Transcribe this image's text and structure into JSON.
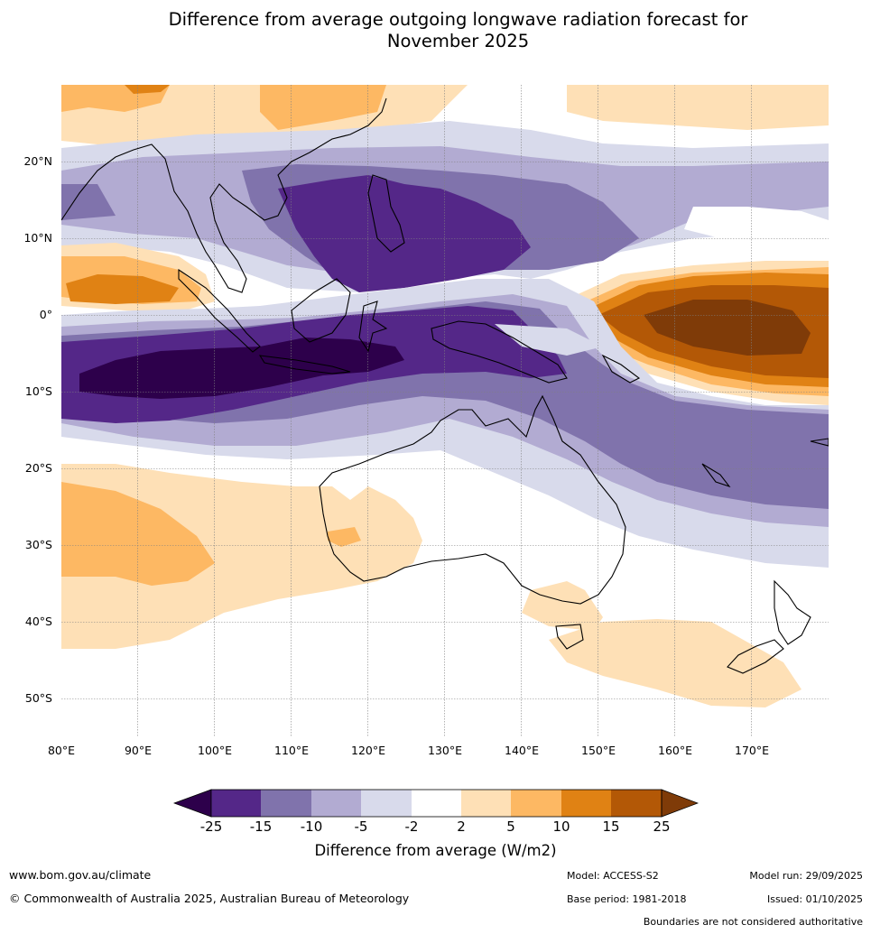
{
  "title_line1": "Difference from average outgoing longwave radiation forecast for",
  "title_line2": "November 2025",
  "lat_labels": [
    "20°N",
    "10°N",
    "0°",
    "10°S",
    "20°S",
    "30°S",
    "40°S",
    "50°S"
  ],
  "lon_labels": [
    "80°E",
    "90°E",
    "100°E",
    "110°E",
    "120°E",
    "130°E",
    "140°E",
    "150°E",
    "160°E",
    "170°E"
  ],
  "colorbar": {
    "ticks": [
      "-25",
      "-15",
      "-10",
      "-5",
      "-2",
      "2",
      "5",
      "10",
      "15",
      "25"
    ],
    "colors": [
      "#2d004b",
      "#542788",
      "#8073ac",
      "#b2abd2",
      "#d8daeb",
      "#ffffff",
      "#fee0b6",
      "#fdb863",
      "#e08214",
      "#b35806",
      "#7f3b08"
    ],
    "label": "Difference from average (W/m2)"
  },
  "footer": {
    "website": "www.bom.gov.au/climate",
    "copyright": "© Commonwealth of Australia 2025, Australian Bureau of Meteorology",
    "model": "Model: ACCESS-S2",
    "base_period": "Base period: 1981-2018",
    "model_run": "Model run: 29/09/2025",
    "issued": "Issued: 01/10/2025",
    "disclaimer": "Boundaries are not considered authoritative"
  }
}
